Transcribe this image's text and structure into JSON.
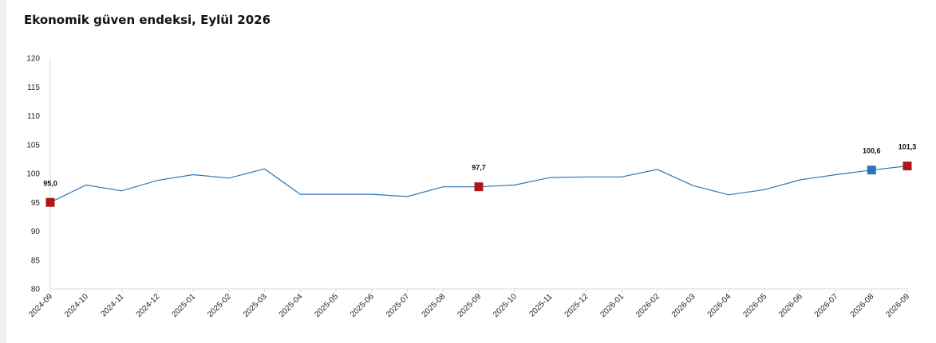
{
  "chart_data": {
    "type": "line",
    "title": "Ekonomik güven endeksi, Eylül 2026",
    "xlabel": "",
    "ylabel": "",
    "ylim": [
      80,
      120
    ],
    "yticks": [
      80,
      85,
      90,
      95,
      100,
      105,
      110,
      115,
      120
    ],
    "grid": false,
    "categories": [
      "2024-09",
      "2024-10",
      "2024-11",
      "2024-12",
      "2025-01",
      "2025-02",
      "2025-03",
      "2025-04",
      "2025-05",
      "2025-06",
      "2025-07",
      "2025-08",
      "2025-09",
      "2025-10",
      "2025-11",
      "2025-12",
      "2026-01",
      "2026-02",
      "2026-03",
      "2026-04",
      "2026-05",
      "2026-06",
      "2026-07",
      "2026-08",
      "2026-09"
    ],
    "series": [
      {
        "values": [
          95.0,
          98.0,
          97.0,
          98.8,
          99.8,
          99.2,
          100.8,
          96.4,
          96.4,
          96.4,
          96.0,
          97.7,
          97.7,
          98.0,
          99.3,
          99.4,
          99.4,
          100.7,
          97.9,
          96.3,
          97.2,
          98.9,
          99.8,
          100.6,
          101.3
        ],
        "color": "#2e75b6"
      }
    ],
    "highlighted_points": [
      {
        "category": "2024-09",
        "value": 95.0,
        "label": "95,0",
        "color": "#b0151b"
      },
      {
        "category": "2025-09",
        "value": 97.7,
        "label": "97,7",
        "color": "#b0151b"
      },
      {
        "category": "2026-08",
        "value": 100.6,
        "label": "100,6",
        "color": "#2e75b6"
      },
      {
        "category": "2026-09",
        "value": 101.3,
        "label": "101,3",
        "color": "#b0151b"
      }
    ],
    "axis_color": "#d9d9d9"
  }
}
